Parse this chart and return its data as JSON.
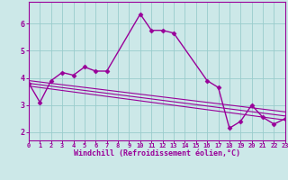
{
  "background_color": "#cce8e8",
  "grid_color": "#99cccc",
  "line_color": "#990099",
  "marker": "D",
  "marker_size": 2.5,
  "line_width": 1.0,
  "xlabel": "Windchill (Refroidissement éolien,°C)",
  "xlabel_color": "#990099",
  "xlabel_fontsize": 6.0,
  "tick_color": "#990099",
  "tick_fontsize": 5.0,
  "xlim": [
    0,
    23
  ],
  "ylim": [
    1.7,
    6.8
  ],
  "yticks": [
    2,
    3,
    4,
    5,
    6
  ],
  "xticks": [
    0,
    1,
    2,
    3,
    4,
    5,
    6,
    7,
    8,
    9,
    10,
    11,
    12,
    13,
    14,
    15,
    16,
    17,
    18,
    19,
    20,
    21,
    22,
    23
  ],
  "series": [
    {
      "x": [
        0,
        1,
        2,
        3,
        4,
        5,
        6,
        7,
        10,
        11,
        12,
        13,
        16,
        17,
        18,
        19,
        20,
        21,
        22,
        23
      ],
      "y": [
        3.8,
        3.1,
        3.9,
        4.2,
        4.1,
        4.4,
        4.25,
        4.25,
        6.35,
        5.75,
        5.75,
        5.65,
        3.9,
        3.65,
        2.15,
        2.4,
        3.0,
        2.55,
        2.3,
        2.5
      ],
      "has_marker": true
    },
    {
      "x": [
        0,
        23
      ],
      "y": [
        3.9,
        2.75
      ],
      "has_marker": false
    },
    {
      "x": [
        0,
        23
      ],
      "y": [
        3.8,
        2.6
      ],
      "has_marker": false
    },
    {
      "x": [
        0,
        23
      ],
      "y": [
        3.7,
        2.45
      ],
      "has_marker": false
    }
  ]
}
